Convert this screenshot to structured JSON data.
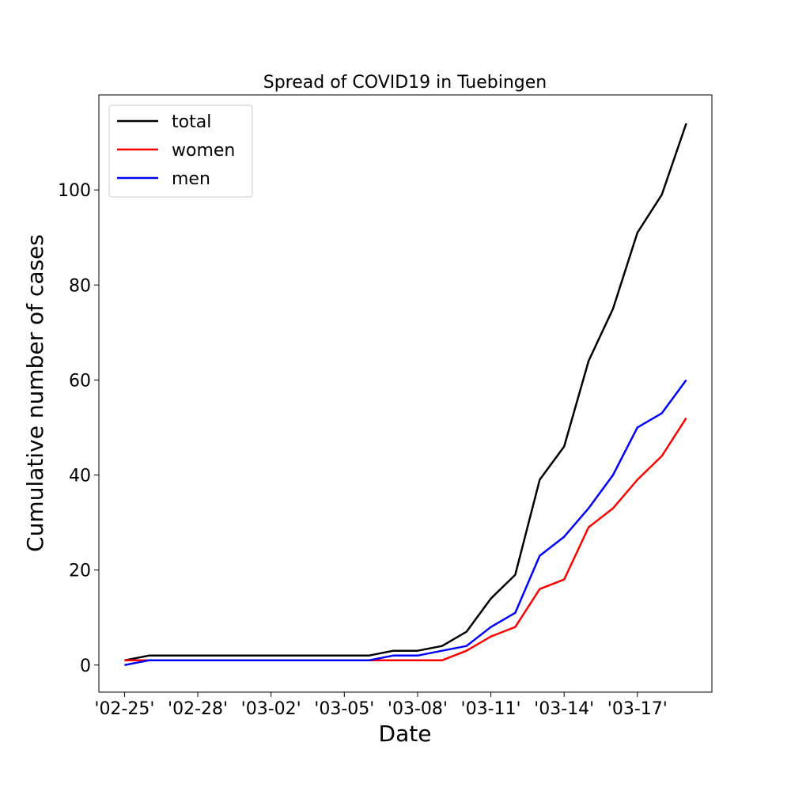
{
  "chart_data": {
    "type": "line",
    "title": "Spread of COVID19 in Tuebingen",
    "xlabel": "Date",
    "ylabel": "Cumulative number of cases",
    "x": [
      "'02-25'",
      "'02-26'",
      "'02-27'",
      "'02-28'",
      "'02-29'",
      "'03-01'",
      "'03-02'",
      "'03-03'",
      "'03-04'",
      "'03-05'",
      "'03-06'",
      "'03-07'",
      "'03-08'",
      "'03-09'",
      "'03-10'",
      "'03-11'",
      "'03-12'",
      "'03-13'",
      "'03-14'",
      "'03-15'",
      "'03-16'",
      "'03-17'",
      "'03-18'",
      "'03-19'"
    ],
    "x_tick_labels": [
      "'02-25'",
      "'02-28'",
      "'03-02'",
      "'03-05'",
      "'03-08'",
      "'03-11'",
      "'03-14'",
      "'03-17'"
    ],
    "y_ticks": [
      0,
      20,
      40,
      60,
      80,
      100
    ],
    "ylim": [
      -5.7,
      120
    ],
    "grid": false,
    "legend_position": "top-left",
    "series": [
      {
        "name": "total",
        "color": "#000000",
        "values": [
          1,
          2,
          2,
          2,
          2,
          2,
          2,
          2,
          2,
          2,
          2,
          3,
          3,
          4,
          7,
          14,
          19,
          39,
          46,
          64,
          75,
          91,
          99,
          114
        ]
      },
      {
        "name": "women",
        "color": "#ff0000",
        "values": [
          1,
          1,
          1,
          1,
          1,
          1,
          1,
          1,
          1,
          1,
          1,
          1,
          1,
          1,
          3,
          6,
          8,
          16,
          18,
          29,
          33,
          39,
          44,
          52
        ]
      },
      {
        "name": "men",
        "color": "#0000ff",
        "values": [
          0,
          1,
          1,
          1,
          1,
          1,
          1,
          1,
          1,
          1,
          1,
          2,
          2,
          3,
          4,
          8,
          11,
          23,
          27,
          33,
          40,
          50,
          53,
          60
        ]
      }
    ]
  }
}
